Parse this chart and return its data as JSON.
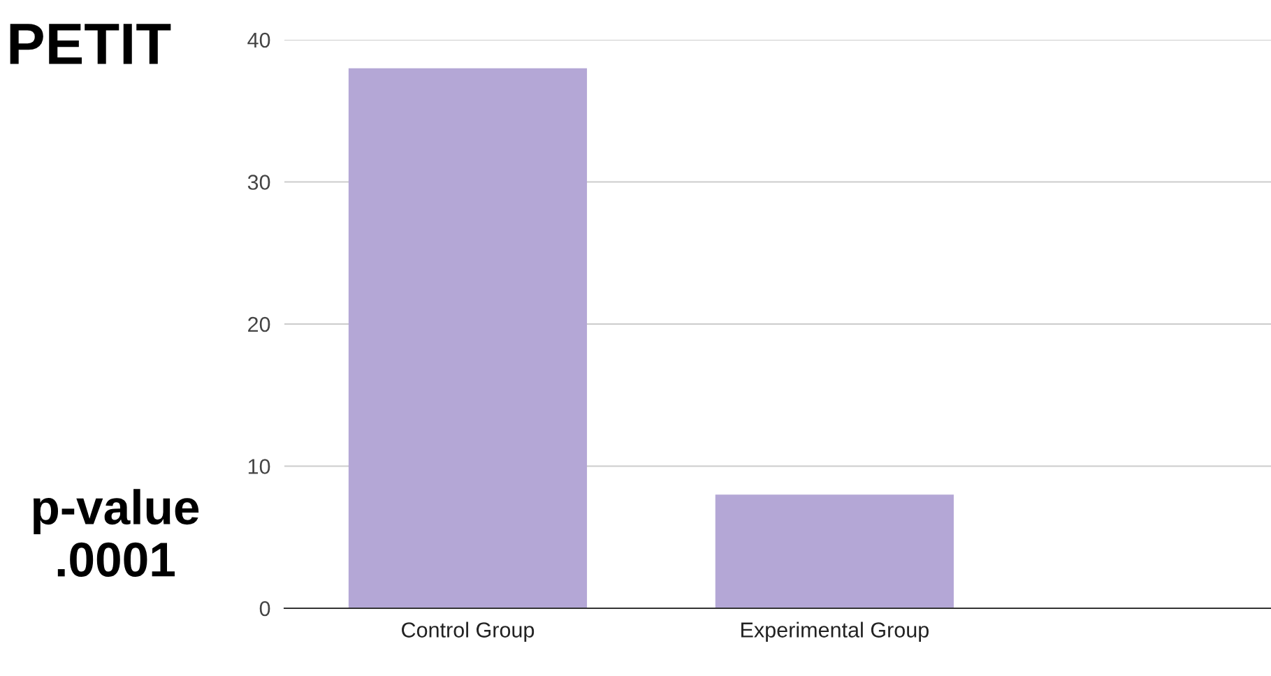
{
  "chart_data": {
    "type": "bar",
    "title": "PETIT",
    "categories": [
      "Control Group",
      "Experimental Group"
    ],
    "values": [
      38,
      8
    ],
    "color": "#b4a7d6",
    "ylim": [
      0,
      40
    ],
    "yticks": [
      0,
      10,
      20,
      30,
      40
    ],
    "grid": "y",
    "annotations": [
      "p-value\n.0001"
    ]
  }
}
